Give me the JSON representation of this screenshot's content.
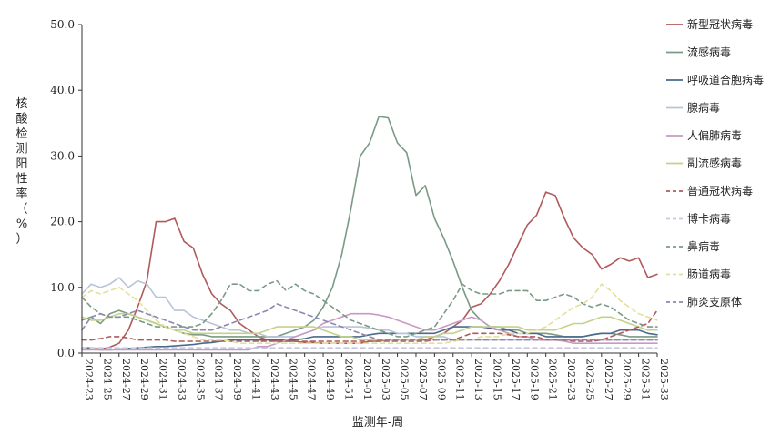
{
  "chart_data": {
    "type": "line",
    "xlabel": "监测年-周",
    "ylabel": "核酸检测阳性率（%）",
    "ylim": [
      0,
      50
    ],
    "yticks": [
      "0.0",
      "10.0",
      "20.0",
      "30.0",
      "40.0",
      "50.0"
    ],
    "grid": false,
    "legend": "right",
    "x": [
      "2024-23",
      "2024-24",
      "2024-25",
      "2024-26",
      "2024-27",
      "2024-28",
      "2024-29",
      "2024-30",
      "2024-31",
      "2024-32",
      "2024-33",
      "2024-34",
      "2024-35",
      "2024-36",
      "2024-37",
      "2024-38",
      "2024-39",
      "2024-40",
      "2024-41",
      "2024-42",
      "2024-43",
      "2024-44",
      "2024-45",
      "2024-46",
      "2024-47",
      "2024-48",
      "2024-49",
      "2024-50",
      "2024-51",
      "2024-52",
      "2025-01",
      "2025-02",
      "2025-03",
      "2025-04",
      "2025-05",
      "2025-06",
      "2025-07",
      "2025-08",
      "2025-09",
      "2025-10",
      "2025-11",
      "2025-12",
      "2025-13",
      "2025-14",
      "2025-15",
      "2025-16",
      "2025-17",
      "2025-18",
      "2025-19",
      "2025-20",
      "2025-21",
      "2025-22",
      "2025-23",
      "2025-24",
      "2025-25",
      "2025-26",
      "2025-27",
      "2025-28",
      "2025-29",
      "2025-30",
      "2025-31",
      "2025-32",
      "2025-33"
    ],
    "xtick_labels": [
      "2024-23",
      "2024-25",
      "2024-27",
      "2024-29",
      "2024-31",
      "2024-33",
      "2024-35",
      "2024-37",
      "2024-39",
      "2024-41",
      "2024-43",
      "2024-45",
      "2024-47",
      "2024-49",
      "2024-51",
      "2025-01",
      "2025-03",
      "2025-05",
      "2025-07",
      "2025-09",
      "2025-11",
      "2025-13",
      "2025-15",
      "2025-17",
      "2025-19",
      "2025-21",
      "2025-23",
      "2025-25",
      "2025-27",
      "2025-29",
      "2025-31",
      "2025-33"
    ],
    "series": [
      {
        "name": "新型冠状病毒",
        "color": "#b05a5a",
        "dash": false,
        "values": [
          0.8,
          0.8,
          0.6,
          0.9,
          1.5,
          3.5,
          7.0,
          11.0,
          20.0,
          20.0,
          20.5,
          17.0,
          16.0,
          12.0,
          9.0,
          7.5,
          6.5,
          4.5,
          3.5,
          2.5,
          2.0,
          1.8,
          1.8,
          1.8,
          1.6,
          1.6,
          1.5,
          1.5,
          1.5,
          1.5,
          1.5,
          1.8,
          1.8,
          2.0,
          2.0,
          2.0,
          2.0,
          2.0,
          2.5,
          3.0,
          4.0,
          5.0,
          7.0,
          7.5,
          9.0,
          11.0,
          13.5,
          16.5,
          19.5,
          21.0,
          24.5,
          24.0,
          20.5,
          17.5,
          16.0,
          15.0,
          12.8,
          13.5,
          14.5,
          14.0,
          14.5,
          11.5,
          12.0
        ]
      },
      {
        "name": "流感病毒",
        "color": "#7a9a86",
        "dash": false,
        "values": [
          5.0,
          5.5,
          4.5,
          6.0,
          6.5,
          6.0,
          5.5,
          5.0,
          4.5,
          4.0,
          3.5,
          3.0,
          2.8,
          2.8,
          2.5,
          2.5,
          2.5,
          2.5,
          2.5,
          2.5,
          2.5,
          2.5,
          3.0,
          3.5,
          4.0,
          5.0,
          7.0,
          10.0,
          15.0,
          22.0,
          30.0,
          32.0,
          36.0,
          35.8,
          32.0,
          30.5,
          24.0,
          25.5,
          20.5,
          17.5,
          14.0,
          10.0,
          6.5,
          5.0,
          4.0,
          4.0,
          3.5,
          3.5,
          3.0,
          3.0,
          3.0,
          2.8,
          2.5,
          2.5,
          2.5,
          2.8,
          3.0,
          3.0,
          2.8,
          2.5,
          2.5,
          2.5,
          2.5
        ]
      },
      {
        "name": "呼吸道合胞病毒",
        "color": "#4a6a8e",
        "dash": false,
        "values": [
          0.8,
          0.6,
          0.5,
          0.5,
          0.6,
          0.7,
          0.8,
          0.9,
          1.0,
          1.0,
          1.1,
          1.2,
          1.3,
          1.5,
          1.6,
          1.8,
          2.0,
          2.0,
          2.0,
          2.0,
          2.0,
          2.0,
          2.0,
          2.0,
          2.2,
          2.5,
          2.5,
          2.5,
          2.5,
          2.5,
          2.5,
          2.8,
          3.0,
          3.0,
          3.0,
          3.0,
          3.0,
          3.0,
          3.0,
          3.5,
          4.0,
          4.0,
          4.0,
          4.0,
          3.8,
          3.5,
          3.5,
          3.0,
          3.0,
          3.0,
          2.5,
          2.5,
          2.5,
          2.5,
          2.5,
          2.8,
          3.0,
          3.0,
          3.5,
          3.5,
          3.5,
          3.0,
          2.8
        ]
      },
      {
        "name": "腺病毒",
        "color": "#b8c4d8",
        "dash": false,
        "values": [
          9.0,
          10.5,
          10.0,
          10.5,
          11.5,
          10.0,
          11.0,
          10.5,
          8.5,
          8.5,
          6.5,
          6.5,
          5.5,
          5.0,
          4.5,
          4.0,
          3.5,
          3.5,
          3.0,
          3.0,
          2.5,
          2.5,
          2.5,
          2.5,
          3.0,
          3.5,
          4.0,
          4.0,
          4.0,
          4.0,
          4.0,
          3.8,
          3.5,
          3.5,
          3.0,
          3.0,
          2.5,
          2.5,
          2.5,
          2.5,
          2.0,
          2.0,
          2.0,
          2.0,
          2.0,
          2.0,
          2.0,
          2.0,
          2.0,
          2.0,
          2.0,
          2.0,
          2.0,
          2.0,
          2.0,
          2.0,
          2.0,
          2.0,
          2.0,
          2.0,
          2.0,
          2.0,
          2.0
        ]
      },
      {
        "name": "人偏肺病毒",
        "color": "#c99ac0",
        "dash": false,
        "values": [
          0.5,
          0.5,
          0.5,
          0.5,
          0.5,
          0.5,
          0.5,
          0.5,
          0.5,
          0.5,
          0.5,
          0.5,
          0.5,
          0.5,
          0.5,
          0.5,
          0.5,
          0.5,
          0.5,
          1.0,
          1.0,
          1.5,
          2.0,
          2.5,
          3.0,
          3.5,
          4.5,
          5.0,
          5.5,
          6.0,
          6.0,
          6.0,
          5.8,
          5.5,
          5.0,
          4.5,
          4.0,
          3.5,
          3.5,
          4.0,
          4.5,
          5.0,
          5.5,
          5.0,
          4.0,
          3.5,
          3.0,
          2.5,
          2.5,
          2.0,
          2.0,
          2.0,
          1.8,
          1.5,
          1.5,
          1.5,
          1.5,
          1.5,
          1.5,
          1.5,
          1.5,
          1.5,
          1.5
        ]
      },
      {
        "name": "副流感病毒",
        "color": "#c3d28a",
        "dash": false,
        "values": [
          5.5,
          5.0,
          5.0,
          5.5,
          6.0,
          6.0,
          5.5,
          5.0,
          4.5,
          4.0,
          3.5,
          3.5,
          3.0,
          3.0,
          3.0,
          3.0,
          3.0,
          3.0,
          3.0,
          3.0,
          3.5,
          4.0,
          4.0,
          4.0,
          4.0,
          4.0,
          3.5,
          3.0,
          2.5,
          2.5,
          2.0,
          2.0,
          2.0,
          2.0,
          2.0,
          2.0,
          2.0,
          2.5,
          2.5,
          3.0,
          3.0,
          3.5,
          4.0,
          4.0,
          4.0,
          4.0,
          4.0,
          4.0,
          3.5,
          3.5,
          3.5,
          3.5,
          4.0,
          4.5,
          4.5,
          5.0,
          5.5,
          5.5,
          5.0,
          4.5,
          4.0,
          3.5,
          3.5
        ]
      },
      {
        "name": "普通冠状病毒",
        "color": "#b05a5a",
        "dash": true,
        "values": [
          2.0,
          2.0,
          2.2,
          2.5,
          2.5,
          2.3,
          2.0,
          2.0,
          2.0,
          2.0,
          1.8,
          1.8,
          1.8,
          1.8,
          1.8,
          1.8,
          1.8,
          1.8,
          1.8,
          1.8,
          1.8,
          1.8,
          1.8,
          1.8,
          1.8,
          1.8,
          1.8,
          1.8,
          1.8,
          1.8,
          1.8,
          1.8,
          1.8,
          1.8,
          1.8,
          1.8,
          1.8,
          1.8,
          2.0,
          2.0,
          2.0,
          2.5,
          3.0,
          3.0,
          3.0,
          3.0,
          2.8,
          2.5,
          2.5,
          2.5,
          2.0,
          2.0,
          2.0,
          1.8,
          1.8,
          1.8,
          2.0,
          2.5,
          3.0,
          3.5,
          4.0,
          4.5,
          6.5
        ]
      },
      {
        "name": "博卡病毒",
        "color": "#c8c8e0",
        "dash": true,
        "values": [
          0.8,
          0.8,
          0.8,
          0.8,
          0.8,
          0.8,
          0.8,
          0.8,
          0.8,
          0.8,
          0.8,
          0.8,
          0.8,
          0.8,
          0.8,
          0.8,
          0.8,
          0.8,
          0.8,
          0.8,
          0.8,
          0.8,
          0.8,
          0.8,
          0.8,
          0.8,
          0.8,
          0.8,
          0.8,
          0.8,
          0.8,
          0.8,
          0.8,
          0.8,
          0.8,
          0.8,
          0.8,
          0.8,
          0.8,
          0.8,
          0.8,
          0.8,
          0.8,
          0.8,
          0.8,
          0.8,
          0.8,
          0.8,
          0.8,
          0.8,
          0.8,
          0.8,
          0.8,
          0.8,
          0.8,
          0.8,
          0.8,
          0.8,
          0.8,
          0.8,
          0.8,
          0.8,
          0.8
        ]
      },
      {
        "name": "鼻病毒",
        "color": "#7a9a86",
        "dash": true,
        "values": [
          8.5,
          7.0,
          6.0,
          5.5,
          5.5,
          5.5,
          5.0,
          4.5,
          4.0,
          4.0,
          4.0,
          4.0,
          4.0,
          4.5,
          6.0,
          8.0,
          10.5,
          10.5,
          9.5,
          9.5,
          10.5,
          11.0,
          9.5,
          10.5,
          9.5,
          9.0,
          8.0,
          7.0,
          6.0,
          5.0,
          4.5,
          4.0,
          3.5,
          3.0,
          2.5,
          2.5,
          3.0,
          3.5,
          4.0,
          6.0,
          8.0,
          10.5,
          9.5,
          9.0,
          9.0,
          9.0,
          9.5,
          9.5,
          9.5,
          8.0,
          8.0,
          8.5,
          9.0,
          8.5,
          7.5,
          7.0,
          7.5,
          7.0,
          6.0,
          5.0,
          4.5,
          4.0,
          4.0
        ]
      },
      {
        "name": "肠道病毒",
        "color": "#e3e09a",
        "dash": true,
        "values": [
          8.5,
          9.5,
          9.0,
          9.5,
          10.0,
          9.0,
          8.0,
          6.5,
          5.0,
          4.0,
          3.5,
          3.0,
          2.5,
          2.0,
          2.0,
          2.0,
          1.8,
          1.5,
          1.5,
          1.5,
          1.5,
          1.5,
          1.5,
          1.5,
          1.5,
          1.5,
          1.5,
          1.5,
          1.5,
          1.5,
          1.5,
          1.5,
          1.5,
          1.5,
          1.5,
          1.5,
          1.5,
          1.5,
          1.5,
          1.5,
          1.8,
          2.0,
          2.0,
          2.5,
          2.5,
          2.5,
          3.0,
          3.0,
          3.0,
          3.5,
          4.0,
          5.0,
          6.0,
          7.0,
          7.5,
          8.5,
          10.5,
          9.5,
          8.0,
          7.0,
          6.0,
          5.5,
          5.0
        ]
      },
      {
        "name": "肺炎支原体",
        "color": "#8e86b0",
        "dash": true,
        "values": [
          3.5,
          5.5,
          6.0,
          5.5,
          5.5,
          6.0,
          6.5,
          6.0,
          5.5,
          5.0,
          4.5,
          4.0,
          3.5,
          3.5,
          3.5,
          4.0,
          4.5,
          5.0,
          5.5,
          6.0,
          6.5,
          7.5,
          7.0,
          6.5,
          6.0,
          5.5,
          5.0,
          4.5,
          4.0,
          3.5,
          3.0,
          2.5,
          2.0,
          2.0,
          2.0,
          2.0,
          2.0,
          2.0,
          2.0,
          2.0,
          2.0,
          2.0,
          2.0,
          2.0,
          2.0,
          2.0,
          2.0,
          2.0,
          2.0,
          2.0,
          2.0,
          2.0,
          2.0,
          2.0,
          2.0,
          2.0,
          2.0,
          2.0,
          2.0,
          2.0,
          2.0,
          2.0,
          2.0
        ]
      }
    ]
  }
}
